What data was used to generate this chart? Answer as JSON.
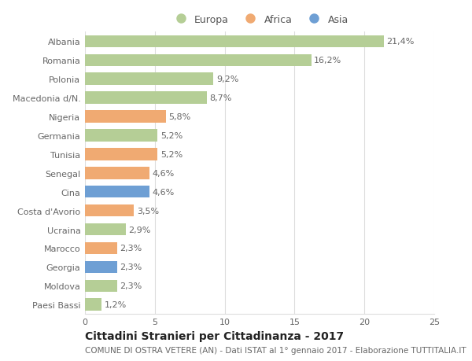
{
  "countries": [
    "Albania",
    "Romania",
    "Polonia",
    "Macedonia d/N.",
    "Nigeria",
    "Germania",
    "Tunisia",
    "Senegal",
    "Cina",
    "Costa d'Avorio",
    "Ucraina",
    "Marocco",
    "Georgia",
    "Moldova",
    "Paesi Bassi"
  ],
  "values": [
    21.4,
    16.2,
    9.2,
    8.7,
    5.8,
    5.2,
    5.2,
    4.6,
    4.6,
    3.5,
    2.9,
    2.3,
    2.3,
    2.3,
    1.2
  ],
  "labels": [
    "21,4%",
    "16,2%",
    "9,2%",
    "8,7%",
    "5,8%",
    "5,2%",
    "5,2%",
    "4,6%",
    "4,6%",
    "3,5%",
    "2,9%",
    "2,3%",
    "2,3%",
    "2,3%",
    "1,2%"
  ],
  "continents": [
    "Europa",
    "Europa",
    "Europa",
    "Europa",
    "Africa",
    "Europa",
    "Africa",
    "Africa",
    "Asia",
    "Africa",
    "Europa",
    "Africa",
    "Asia",
    "Europa",
    "Europa"
  ],
  "continent_colors": {
    "Europa": "#b5ce96",
    "Africa": "#f0aa72",
    "Asia": "#6e9fd4"
  },
  "legend_items": [
    {
      "label": "Europa",
      "color": "#b5ce96"
    },
    {
      "label": "Africa",
      "color": "#f0aa72"
    },
    {
      "label": "Asia",
      "color": "#6e9fd4"
    }
  ],
  "xlim": [
    0,
    25
  ],
  "xticks": [
    0,
    5,
    10,
    15,
    20,
    25
  ],
  "title1": "Cittadini Stranieri per Cittadinanza - 2017",
  "title2": "COMUNE DI OSTRA VETERE (AN) - Dati ISTAT al 1° gennaio 2017 - Elaborazione TUTTITALIA.IT",
  "background_color": "#ffffff",
  "grid_color": "#dddddd",
  "bar_height": 0.65,
  "label_fontsize": 8,
  "tick_fontsize": 8,
  "title1_fontsize": 10,
  "title2_fontsize": 7.5
}
